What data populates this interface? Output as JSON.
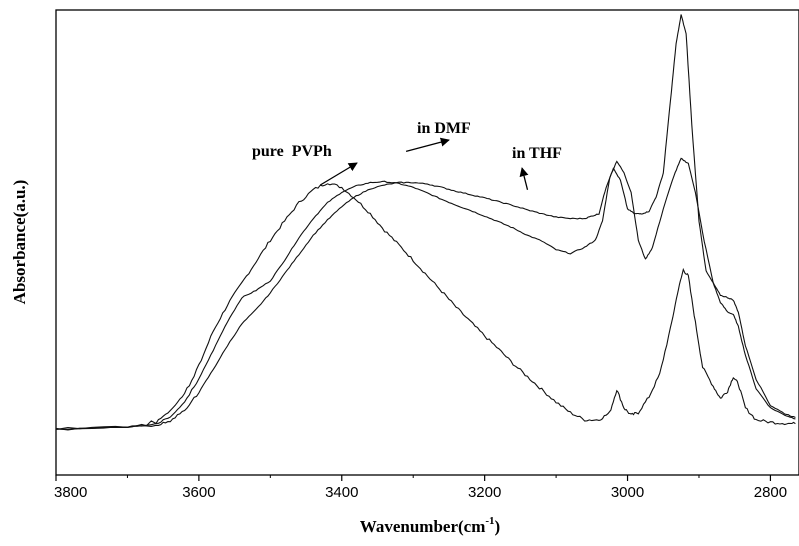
{
  "chart_data": {
    "type": "line",
    "title": "",
    "xlabel": "Wavenumber(cm",
    "xlabel_sup": "-1",
    "xlabel_close": ")",
    "ylabel": "Absorbance(a.u.)",
    "xlim": [
      3800,
      2760
    ],
    "x_reversed": true,
    "ylim": [
      0,
      1
    ],
    "y_ticks_shown": false,
    "grid": false,
    "x_ticks": [
      3800,
      3600,
      3400,
      3200,
      3000,
      2800
    ],
    "x_tick_labels": [
      "3800",
      "3600",
      "3400",
      "3200",
      "3000",
      "2800"
    ],
    "annotations": [
      {
        "text": "pure  PVPh",
        "series": 0,
        "x": 3430,
        "y": 0.605
      },
      {
        "text": "in DMF",
        "series": 1,
        "x": 3310,
        "y": 0.675
      },
      {
        "text": "in THF",
        "series": 2,
        "x": 3140,
        "y": 0.595
      }
    ],
    "series": [
      {
        "name": "pure  PVPh",
        "x": [
          3800,
          3700,
          3660,
          3640,
          3620,
          3600,
          3580,
          3560,
          3540,
          3520,
          3500,
          3480,
          3460,
          3440,
          3420,
          3400,
          3380,
          3360,
          3340,
          3320,
          3300,
          3280,
          3260,
          3240,
          3220,
          3200,
          3180,
          3160,
          3140,
          3120,
          3100,
          3080,
          3060,
          3040,
          3025,
          3015,
          3005,
          2995,
          2985,
          2970,
          2955,
          2940,
          2930,
          2922,
          2915,
          2905,
          2895,
          2880,
          2870,
          2860,
          2852,
          2845,
          2835,
          2820,
          2800,
          2780,
          2765
        ],
        "y": [
          0.097,
          0.1,
          0.11,
          0.135,
          0.17,
          0.228,
          0.3,
          0.355,
          0.4,
          0.445,
          0.49,
          0.53,
          0.568,
          0.595,
          0.61,
          0.6,
          0.575,
          0.545,
          0.51,
          0.48,
          0.448,
          0.415,
          0.383,
          0.35,
          0.32,
          0.29,
          0.262,
          0.232,
          0.205,
          0.178,
          0.152,
          0.13,
          0.115,
          0.115,
          0.13,
          0.178,
          0.14,
          0.125,
          0.13,
          0.163,
          0.21,
          0.305,
          0.38,
          0.428,
          0.415,
          0.318,
          0.225,
          0.185,
          0.16,
          0.175,
          0.205,
          0.19,
          0.14,
          0.115,
          0.11,
          0.108,
          0.107
        ]
      },
      {
        "name": "in DMF",
        "x": [
          3800,
          3700,
          3660,
          3640,
          3620,
          3600,
          3580,
          3560,
          3540,
          3520,
          3500,
          3480,
          3460,
          3440,
          3420,
          3400,
          3380,
          3360,
          3340,
          3320,
          3300,
          3280,
          3260,
          3240,
          3220,
          3200,
          3180,
          3160,
          3140,
          3120,
          3100,
          3080,
          3060,
          3045,
          3035,
          3025,
          3015,
          3005,
          2995,
          2985,
          2975,
          2965,
          2950,
          2935,
          2925,
          2915,
          2905,
          2895,
          2880,
          2870,
          2860,
          2852,
          2845,
          2835,
          2820,
          2800,
          2780,
          2765
        ],
        "y": [
          0.097,
          0.1,
          0.106,
          0.122,
          0.152,
          0.2,
          0.26,
          0.32,
          0.37,
          0.385,
          0.405,
          0.448,
          0.495,
          0.535,
          0.568,
          0.59,
          0.603,
          0.61,
          0.612,
          0.608,
          0.6,
          0.588,
          0.575,
          0.563,
          0.552,
          0.54,
          0.528,
          0.515,
          0.5,
          0.488,
          0.47,
          0.462,
          0.475,
          0.49,
          0.53,
          0.62,
          0.655,
          0.63,
          0.59,
          0.49,
          0.45,
          0.475,
          0.555,
          0.625,
          0.66,
          0.65,
          0.59,
          0.505,
          0.4,
          0.36,
          0.34,
          0.335,
          0.31,
          0.25,
          0.18,
          0.14,
          0.125,
          0.117
        ]
      },
      {
        "name": "in THF",
        "x": [
          3800,
          3700,
          3660,
          3640,
          3620,
          3600,
          3580,
          3560,
          3540,
          3520,
          3500,
          3480,
          3460,
          3440,
          3420,
          3400,
          3380,
          3360,
          3340,
          3320,
          3300,
          3280,
          3260,
          3240,
          3220,
          3200,
          3180,
          3160,
          3140,
          3120,
          3100,
          3080,
          3060,
          3050,
          3040,
          3030,
          3020,
          3010,
          3000,
          2990,
          2980,
          2970,
          2960,
          2950,
          2940,
          2932,
          2925,
          2918,
          2910,
          2900,
          2890,
          2880,
          2870,
          2860,
          2852,
          2845,
          2835,
          2820,
          2800,
          2780,
          2765
        ],
        "y": [
          0.097,
          0.1,
          0.103,
          0.113,
          0.135,
          0.172,
          0.22,
          0.27,
          0.315,
          0.345,
          0.38,
          0.42,
          0.46,
          0.5,
          0.532,
          0.56,
          0.582,
          0.597,
          0.605,
          0.61,
          0.61,
          0.607,
          0.6,
          0.592,
          0.585,
          0.578,
          0.57,
          0.562,
          0.553,
          0.545,
          0.538,
          0.535,
          0.535,
          0.54,
          0.545,
          0.6,
          0.64,
          0.615,
          0.555,
          0.545,
          0.545,
          0.55,
          0.58,
          0.63,
          0.78,
          0.9,
          0.96,
          0.92,
          0.73,
          0.53,
          0.425,
          0.4,
          0.375,
          0.37,
          0.365,
          0.34,
          0.27,
          0.2,
          0.145,
          0.128,
          0.12
        ]
      }
    ]
  }
}
